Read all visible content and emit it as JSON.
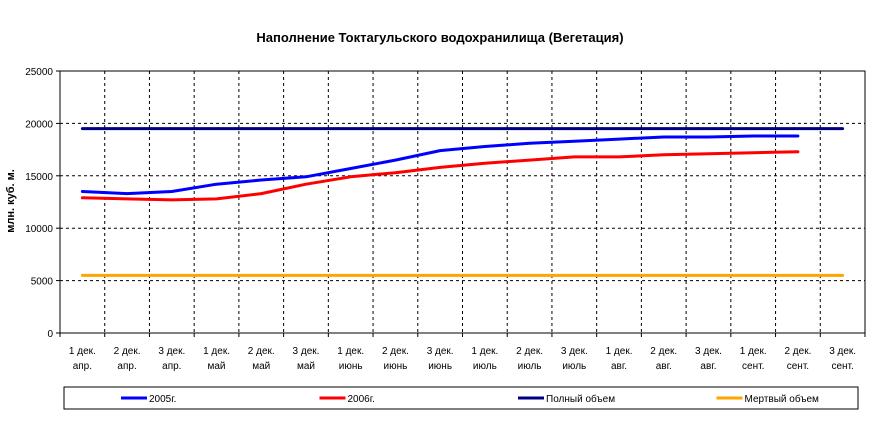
{
  "chart_data": {
    "type": "line",
    "title": "Наполнение Токтагульского водохранилища (Вегетация)",
    "xlabel": "",
    "ylabel": "млн. куб. м.",
    "ylim": [
      0,
      25000
    ],
    "yticks": [
      0,
      5000,
      10000,
      15000,
      20000,
      25000
    ],
    "grid": true,
    "legend_position": "bottom",
    "categories": [
      [
        "1 дек.",
        "апр."
      ],
      [
        "2 дек.",
        "апр."
      ],
      [
        "3 дек.",
        "апр."
      ],
      [
        "1 дек.",
        "май"
      ],
      [
        "2 дек.",
        "май"
      ],
      [
        "3 дек.",
        "май"
      ],
      [
        "1 дек.",
        "июнь"
      ],
      [
        "2 дек.",
        "июнь"
      ],
      [
        "3 дек.",
        "июнь"
      ],
      [
        "1 дек.",
        "июль"
      ],
      [
        "2 дек.",
        "июль"
      ],
      [
        "3 дек.",
        "июль"
      ],
      [
        "1 дек.",
        "авг."
      ],
      [
        "2 дек.",
        "авг."
      ],
      [
        "3 дек.",
        "авг."
      ],
      [
        "1 дек.",
        "сент."
      ],
      [
        "2 дек.",
        "сент."
      ],
      [
        "3 дек.",
        "сент."
      ]
    ],
    "series": [
      {
        "name": "2005г.",
        "color": "#0000ff",
        "values": [
          13500,
          13300,
          13500,
          14200,
          14600,
          14900,
          15700,
          16500,
          17400,
          17800,
          18100,
          18300,
          18500,
          18700,
          18700,
          18800,
          18800,
          null
        ]
      },
      {
        "name": "2006г.",
        "color": "#ff0000",
        "values": [
          12900,
          12800,
          12700,
          12800,
          13300,
          14200,
          14900,
          15300,
          15800,
          16200,
          16500,
          16800,
          16800,
          17000,
          17100,
          17200,
          17300,
          null
        ]
      },
      {
        "name": "Полный объем",
        "color": "#000080",
        "values": [
          19500,
          19500,
          19500,
          19500,
          19500,
          19500,
          19500,
          19500,
          19500,
          19500,
          19500,
          19500,
          19500,
          19500,
          19500,
          19500,
          19500,
          19500
        ]
      },
      {
        "name": "Мертвый объем",
        "color": "#ffa500",
        "values": [
          5500,
          5500,
          5500,
          5500,
          5500,
          5500,
          5500,
          5500,
          5500,
          5500,
          5500,
          5500,
          5500,
          5500,
          5500,
          5500,
          5500,
          5500
        ]
      }
    ]
  }
}
